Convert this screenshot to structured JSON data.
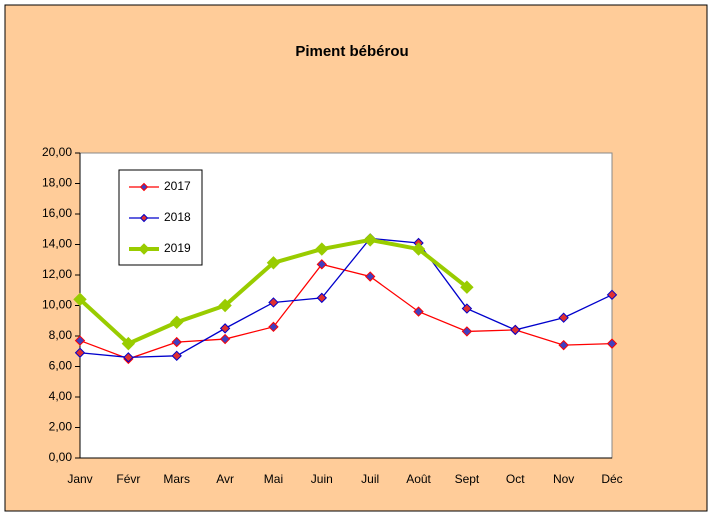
{
  "chart_data": {
    "type": "line",
    "title": "Piment bébérou",
    "categories": [
      "Janv",
      "Févr",
      "Mars",
      "Avr",
      "Mai",
      "Juin",
      "Juil",
      "Août",
      "Sept",
      "Oct",
      "Nov",
      "Déc"
    ],
    "series": [
      {
        "name": "2017",
        "color": "#ff0000",
        "marker_color": "#4040c0",
        "values": [
          7.7,
          6.5,
          7.6,
          7.8,
          8.6,
          12.7,
          11.9,
          9.6,
          8.3,
          8.4,
          7.4,
          7.5
        ]
      },
      {
        "name": "2018",
        "color": "#0000cc",
        "marker_color": "#e03030",
        "values": [
          6.9,
          6.6,
          6.7,
          8.5,
          10.2,
          10.5,
          14.4,
          14.1,
          9.8,
          8.4,
          9.2,
          10.7
        ]
      },
      {
        "name": "2019",
        "color": "#99cc00",
        "marker_color": "#99cc00",
        "values": [
          10.4,
          7.5,
          8.9,
          10.0,
          12.8,
          13.7,
          14.3,
          13.7,
          11.2,
          null,
          null,
          null
        ]
      }
    ],
    "ylim": [
      0,
      20
    ],
    "yticks": [
      {
        "value": 0,
        "label": "0,00"
      },
      {
        "value": 2,
        "label": "2,00"
      },
      {
        "value": 4,
        "label": "4,00"
      },
      {
        "value": 6,
        "label": "6,00"
      },
      {
        "value": 8,
        "label": "8,00"
      },
      {
        "value": 10,
        "label": "10,00"
      },
      {
        "value": 12,
        "label": "12,00"
      },
      {
        "value": 14,
        "label": "14,00"
      },
      {
        "value": 16,
        "label": "16,00"
      },
      {
        "value": 18,
        "label": "18,00"
      },
      {
        "value": 20,
        "label": "20,00"
      }
    ],
    "legend": "top-left"
  }
}
